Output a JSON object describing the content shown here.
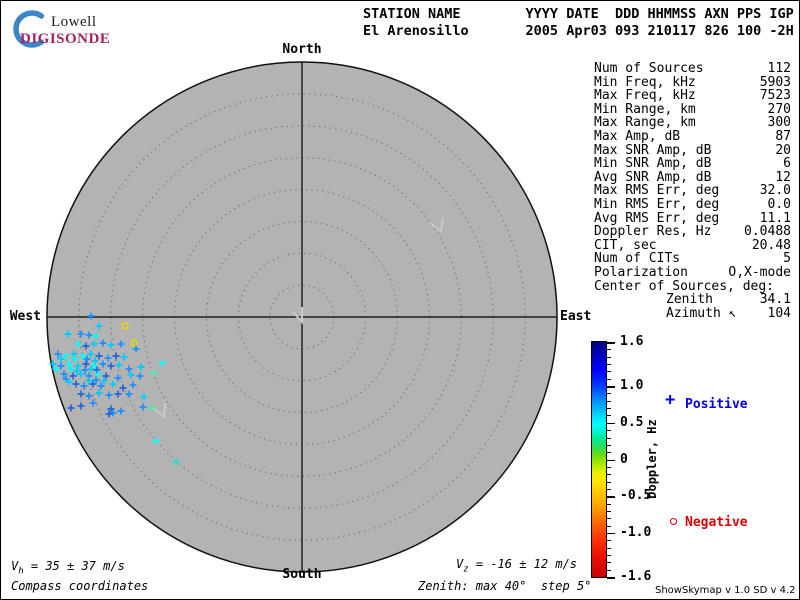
{
  "logo": {
    "lowell": "Lowell",
    "digisonde": "DIGISONDE",
    "crescent_color": "#3A86C8",
    "digisonde_color": "#A62262"
  },
  "header": {
    "line1": "STATION NAME        YYYY DATE  DDD HHMMSS AXN PPS IGP",
    "line2": "El Arenosillo       2005 Apr03 093 210117 826 100 -2H"
  },
  "stats": {
    "rows": [
      {
        "label": "Num of Sources",
        "value": "112"
      },
      {
        "label": "Min Freq, kHz",
        "value": "5903"
      },
      {
        "label": "Max Freq, kHz",
        "value": "7523"
      },
      {
        "label": "Min Range, km",
        "value": "270"
      },
      {
        "label": "Max Range, km",
        "value": "300"
      },
      {
        "label": "Max Amp, dB",
        "value": "87"
      },
      {
        "label": "Max SNR Amp, dB",
        "value": "20"
      },
      {
        "label": "Min SNR Amp, dB",
        "value": "6"
      },
      {
        "label": "Avg SNR Amp, dB",
        "value": "12"
      },
      {
        "label": "Max RMS Err, deg",
        "value": "32.0"
      },
      {
        "label": "Min RMS Err, deg",
        "value": "0.0"
      },
      {
        "label": "Avg RMS Err, deg",
        "value": "11.1"
      },
      {
        "label": "Doppler Res, Hz",
        "value": "0.0488"
      },
      {
        "label": "CIT, sec",
        "value": "20.48"
      },
      {
        "label": "Num of CITs",
        "value": "5"
      },
      {
        "label": "Polarization",
        "value": "O,X-mode"
      },
      {
        "label": "Center of Sources, deg:",
        "value": ""
      },
      {
        "label": "Zenith",
        "value": "34.1",
        "indent": true
      },
      {
        "label": "Azimuth ↖",
        "value": "104",
        "indent": true
      }
    ]
  },
  "colorbar": {
    "title": "Doppler, Hz",
    "range": [
      -1.6,
      1.6
    ],
    "minor_step": 0.1,
    "major_ticks": [
      [
        "1.6",
        1.6
      ],
      [
        "1.0",
        1.0
      ],
      [
        "0.5",
        0.5
      ],
      [
        "0",
        0
      ],
      [
        "-0.5",
        -0.5
      ],
      [
        "-1.0",
        -1.0
      ],
      [
        "-1.6",
        -1.6
      ]
    ],
    "gradient": [
      [
        0,
        "#000080"
      ],
      [
        6,
        "#0000C0"
      ],
      [
        12,
        "#0000FF"
      ],
      [
        19,
        "#0040FF"
      ],
      [
        25,
        "#0090FF"
      ],
      [
        30,
        "#00C8FF"
      ],
      [
        35,
        "#00FFFF"
      ],
      [
        40,
        "#00EEAA"
      ],
      [
        44,
        "#22DD66"
      ],
      [
        48,
        "#66DD11"
      ],
      [
        52,
        "#AAE800"
      ],
      [
        56,
        "#F0F000"
      ],
      [
        60,
        "#FFE000"
      ],
      [
        66,
        "#FFBB00"
      ],
      [
        71,
        "#FF9900"
      ],
      [
        77,
        "#FF6600"
      ],
      [
        84,
        "#FF3300"
      ],
      [
        91,
        "#EE1100"
      ],
      [
        100,
        "#C80000"
      ]
    ]
  },
  "legend": {
    "positive": {
      "symbol": "+",
      "label": "Positive",
      "color": "#0000DD"
    },
    "negative": {
      "symbol": "o",
      "label": "Negative",
      "color": "#DD0000"
    }
  },
  "skymap": {
    "compass": {
      "north": "North",
      "east": "East",
      "south": "South",
      "west": "West"
    },
    "max_zenith_deg": 40,
    "ring_step_deg": 5,
    "background_color": "#B3B3B3",
    "direction_markers": [
      [
        [
          292,
          311
        ],
        [
          301,
          321
        ],
        [
          301,
          306
        ]
      ],
      [
        [
          429,
          222
        ],
        [
          440,
          230
        ],
        [
          442,
          217
        ]
      ],
      [
        [
          152,
          407
        ],
        [
          163,
          416
        ],
        [
          164,
          402
        ]
      ]
    ],
    "points": [
      [
        90,
        315,
        "#1E90FF",
        "+"
      ],
      [
        98,
        325,
        "#00CCFF",
        "+"
      ],
      [
        124,
        325,
        "#E8D800",
        "o"
      ],
      [
        67,
        333,
        "#00CCFF",
        "+"
      ],
      [
        80,
        333,
        "#1E90FF",
        "+"
      ],
      [
        88,
        334,
        "#1E90FF",
        "+"
      ],
      [
        95,
        335,
        "#00FFFF",
        "+"
      ],
      [
        133,
        342,
        "#E8D800",
        "o"
      ],
      [
        77,
        343,
        "#00FFFF",
        "+"
      ],
      [
        85,
        345,
        "#2266DD",
        "+"
      ],
      [
        93,
        343,
        "#00CCFF",
        "+"
      ],
      [
        102,
        342,
        "#1E90FF",
        "+"
      ],
      [
        110,
        344,
        "#00CCFF",
        "+"
      ],
      [
        120,
        343,
        "#1E90FF",
        "+"
      ],
      [
        135,
        348,
        "#1E90FF",
        "+"
      ],
      [
        57,
        353,
        "#1E90FF",
        "+"
      ],
      [
        65,
        355,
        "#00FFFF",
        "+"
      ],
      [
        73,
        353,
        "#00CCFF",
        "+"
      ],
      [
        82,
        355,
        "#00FFFF",
        "+"
      ],
      [
        90,
        353,
        "#00CCFF",
        "+"
      ],
      [
        98,
        355,
        "#2266DD",
        "+"
      ],
      [
        107,
        357,
        "#1E90FF",
        "+"
      ],
      [
        115,
        355,
        "#2266DD",
        "+"
      ],
      [
        123,
        356,
        "#00CCFF",
        "+"
      ],
      [
        60,
        358,
        "#00CCFF",
        "+"
      ],
      [
        74,
        358,
        "#00FFFF",
        "+"
      ],
      [
        86,
        358,
        "#1E90FF",
        "+"
      ],
      [
        94,
        360,
        "#00CCFF",
        "+"
      ],
      [
        52,
        363,
        "#00CCFF",
        "+"
      ],
      [
        60,
        365,
        "#1E90FF",
        "+"
      ],
      [
        68,
        363,
        "#00FFFF",
        "+"
      ],
      [
        77,
        365,
        "#00CCFF",
        "+"
      ],
      [
        85,
        363,
        "#2266DD",
        "+"
      ],
      [
        93,
        365,
        "#00FFFF",
        "+"
      ],
      [
        102,
        363,
        "#1E90FF",
        "+"
      ],
      [
        110,
        365,
        "#2266DD",
        "+"
      ],
      [
        118,
        364,
        "#00CCFF",
        "+"
      ],
      [
        128,
        368,
        "#1E90FF",
        "+"
      ],
      [
        140,
        366,
        "#00CCFF",
        "+"
      ],
      [
        161,
        362,
        "#00FFFF",
        "+"
      ],
      [
        55,
        368,
        "#00FFFF",
        "+"
      ],
      [
        70,
        368,
        "#00FFFF",
        "+"
      ],
      [
        76,
        370,
        "#00CCFF",
        "+"
      ],
      [
        84,
        369,
        "#1E90FF",
        "+"
      ],
      [
        90,
        368,
        "#00CCFF",
        "+"
      ],
      [
        96,
        369,
        "#2266DD",
        "+"
      ],
      [
        63,
        373,
        "#1E90FF",
        "+"
      ],
      [
        72,
        375,
        "#2266DD",
        "+"
      ],
      [
        80,
        373,
        "#00CCFF",
        "+"
      ],
      [
        88,
        375,
        "#1E90FF",
        "+"
      ],
      [
        97,
        373,
        "#00FFFF",
        "+"
      ],
      [
        105,
        375,
        "#2266DD",
        "+"
      ],
      [
        117,
        377,
        "#1E90FF",
        "+"
      ],
      [
        130,
        374,
        "#00CCFF",
        "+"
      ],
      [
        139,
        375,
        "#1E90FF",
        "+"
      ],
      [
        153,
        372,
        "#44EEBB",
        "+"
      ],
      [
        65,
        378,
        "#1E90FF",
        "+"
      ],
      [
        68,
        381,
        "#00CCFF",
        "+"
      ],
      [
        75,
        383,
        "#2266DD",
        "+"
      ],
      [
        83,
        385,
        "#1E90FF",
        "+"
      ],
      [
        92,
        383,
        "#2266DD",
        "+"
      ],
      [
        100,
        385,
        "#1E90FF",
        "+"
      ],
      [
        112,
        383,
        "#00CCFF",
        "+"
      ],
      [
        122,
        387,
        "#2266DD",
        "+"
      ],
      [
        132,
        384,
        "#1E90FF",
        "+"
      ],
      [
        88,
        380,
        "#00CCFF",
        "+"
      ],
      [
        95,
        379,
        "#1E90FF",
        "+"
      ],
      [
        103,
        380,
        "#00CCFF",
        "+"
      ],
      [
        80,
        393,
        "#2266DD",
        "+"
      ],
      [
        88,
        395,
        "#1E90FF",
        "+"
      ],
      [
        98,
        392,
        "#00CCFF",
        "+"
      ],
      [
        108,
        394,
        "#1E90FF",
        "+"
      ],
      [
        117,
        393,
        "#2266DD",
        "+"
      ],
      [
        128,
        393,
        "#1E90FF",
        "+"
      ],
      [
        143,
        396,
        "#00CCFF",
        "+"
      ],
      [
        70,
        407,
        "#2266DD",
        "+"
      ],
      [
        80,
        405,
        "#2266DD",
        "+"
      ],
      [
        92,
        402,
        "#1E90FF",
        "+"
      ],
      [
        110,
        408,
        "#2266DD",
        "+"
      ],
      [
        120,
        410,
        "#1E90FF",
        "+"
      ],
      [
        142,
        406,
        "#1E90FF",
        "+"
      ],
      [
        151,
        407,
        "#44EEBB",
        "+"
      ],
      [
        112,
        412,
        "#1E90FF",
        "+"
      ],
      [
        108,
        413,
        "#2266DD",
        "+"
      ],
      [
        155,
        440,
        "#00FFFF",
        "+"
      ],
      [
        175,
        461,
        "#22DDCC",
        "+"
      ]
    ]
  },
  "velocities": {
    "vh_symbol": "V",
    "vh_sub": "h",
    "vh_value": " = 35 ± 37 m/s",
    "vz_symbol": "V",
    "vz_sub": "z",
    "vz_value": " = -16 ± 12 m/s"
  },
  "footer": {
    "coordinates_note": "Compass coordinates",
    "zenith_note": "Zenith: max 40°  step 5°",
    "version": "ShowSkymap v 1.0  SD v 4.2"
  }
}
